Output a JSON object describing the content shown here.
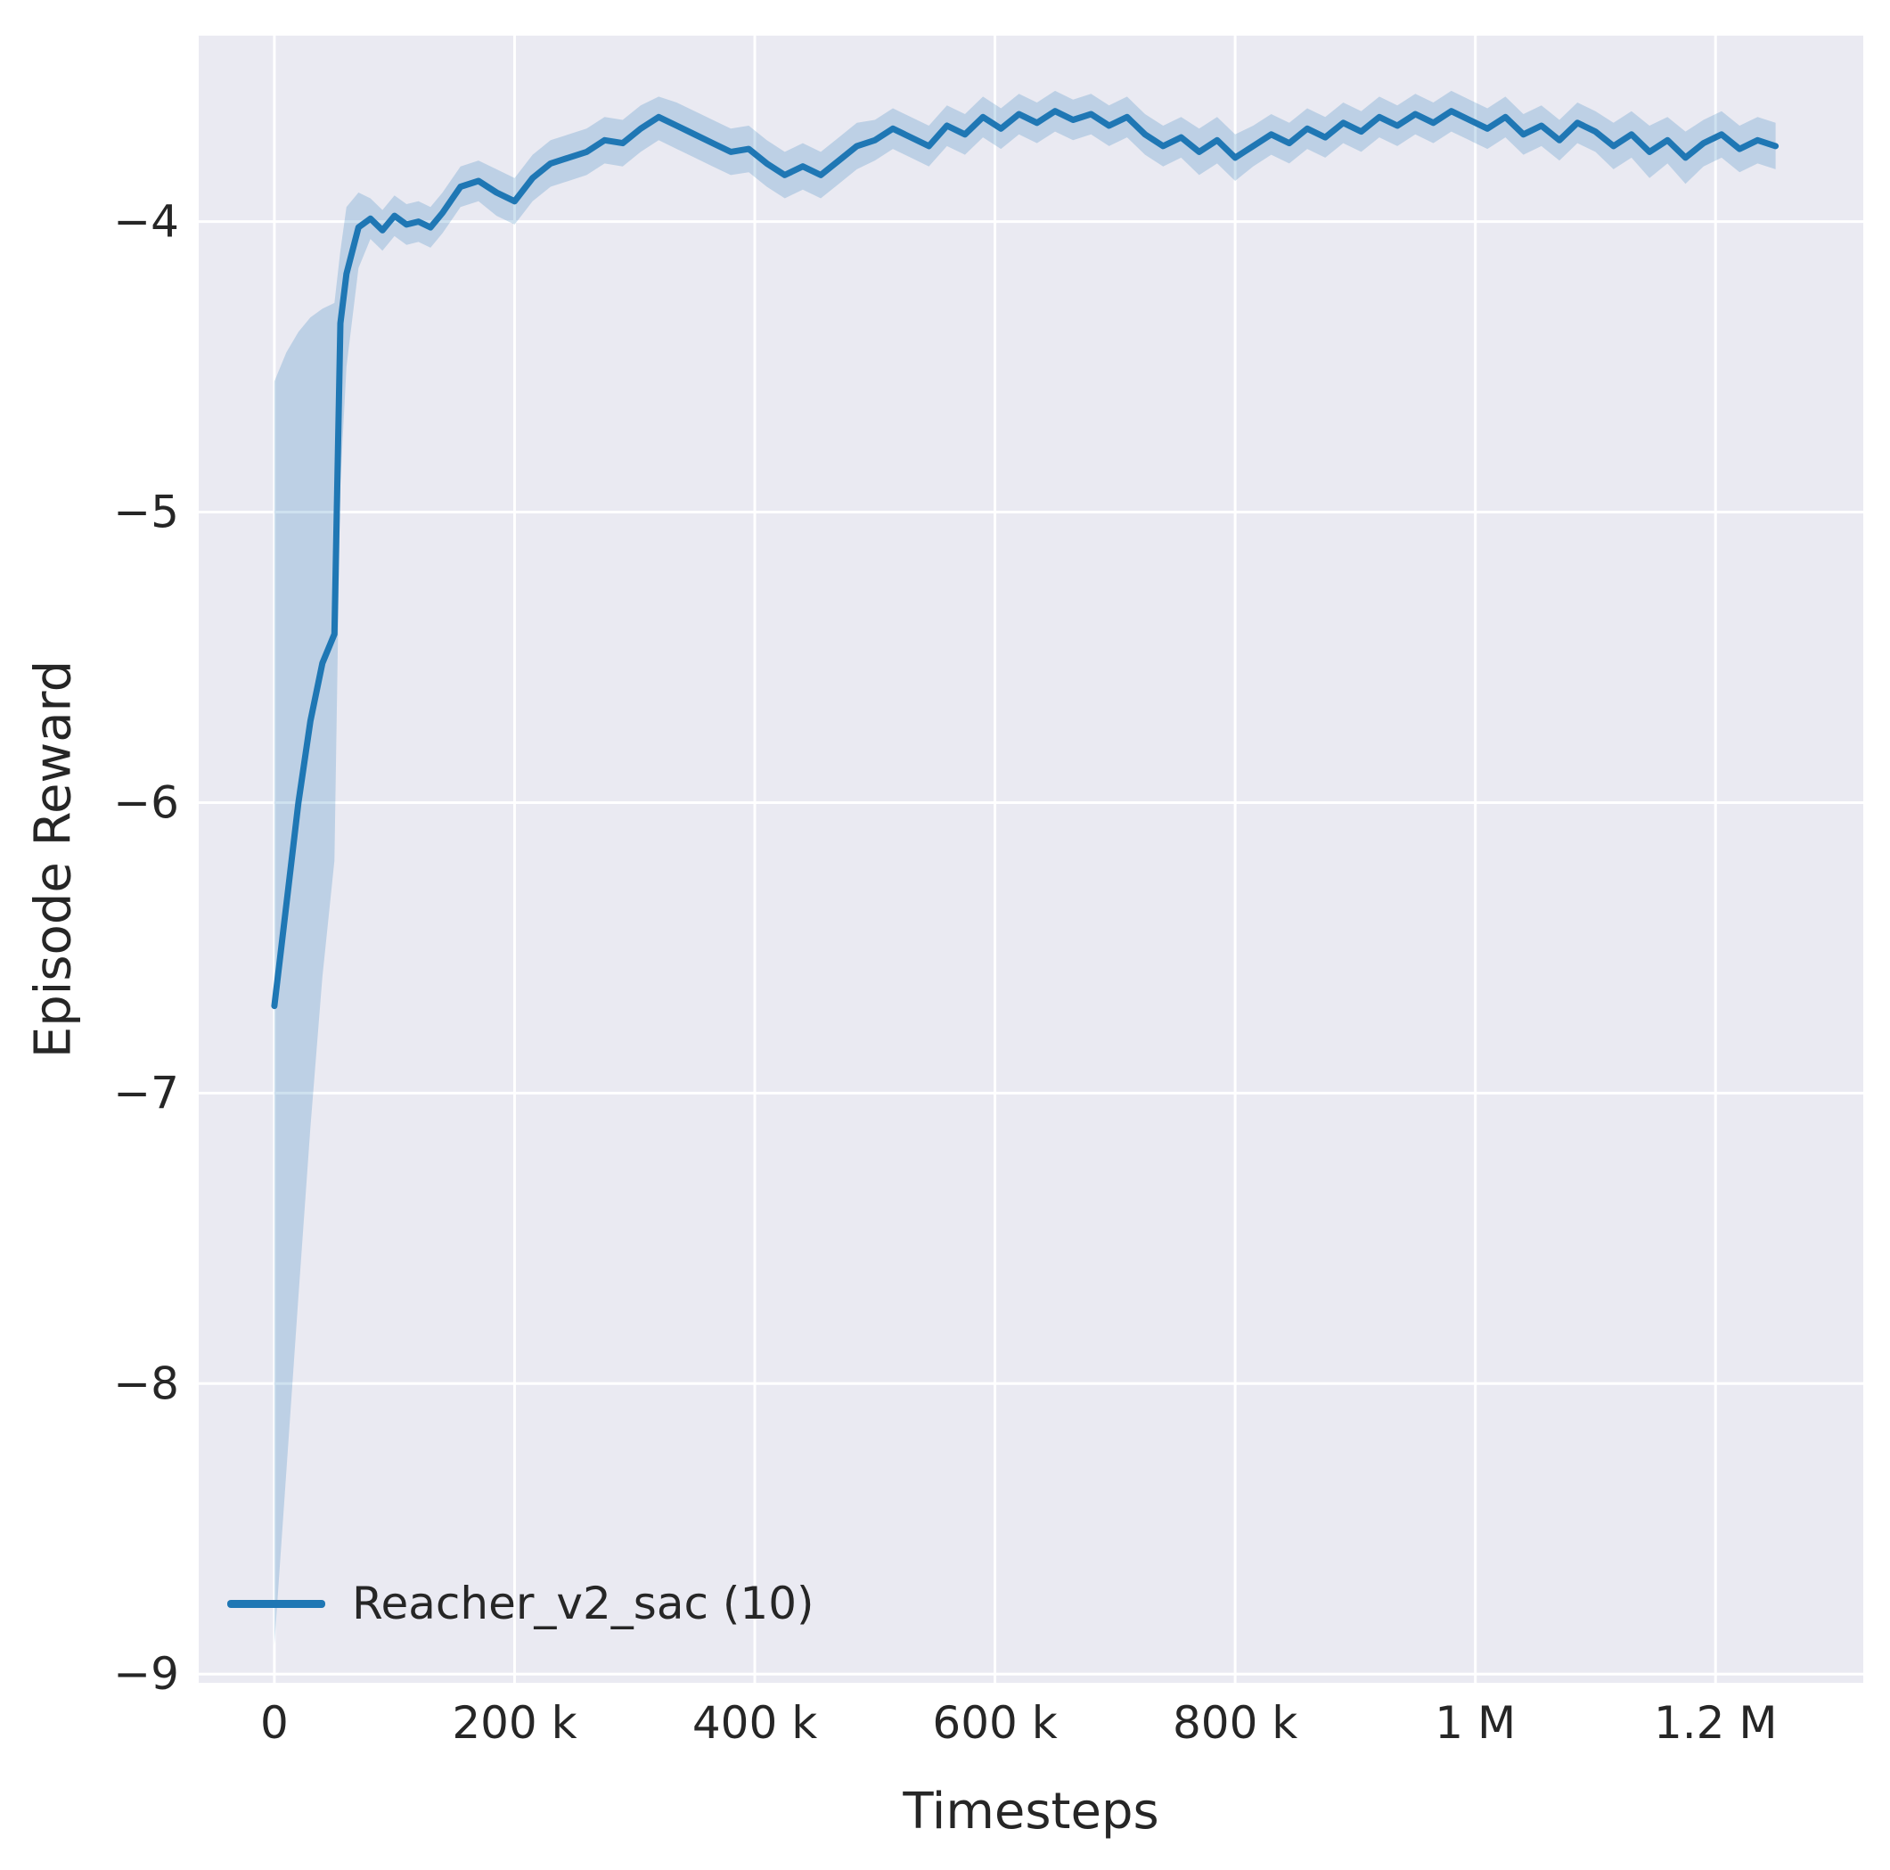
{
  "chart_data": {
    "type": "line",
    "title": "",
    "xlabel": "Timesteps",
    "ylabel": "Episode Reward",
    "plot_bg": "#eaeaf2",
    "grid_color": "#ffffff",
    "grid": true,
    "text_color": "#262626",
    "xlim": [
      -63000,
      1323000
    ],
    "ylim": [
      -9.03,
      -3.36
    ],
    "x_ticks": {
      "values": [
        0,
        200000,
        400000,
        600000,
        800000,
        1000000,
        1200000
      ],
      "labels": [
        "0",
        "200 k",
        "400 k",
        "600 k",
        "800 k",
        "1 M",
        "1.2 M"
      ]
    },
    "y_ticks": {
      "values": [
        -4,
        -5,
        -6,
        -7,
        -8,
        -9
      ],
      "labels": [
        "−4",
        "−5",
        "−6",
        "−7",
        "−8",
        "−9"
      ]
    },
    "legend": {
      "position": "lower-left",
      "entries": [
        {
          "label": "Reacher_v2_sac (10)",
          "color": "#1f77b4"
        }
      ]
    },
    "series": [
      {
        "name": "Reacher_v2_sac (10)",
        "color": "#1f77b4",
        "line_width": 7,
        "band_color": "#1f77b4",
        "band_opacity": 0.22,
        "x": [
          0,
          10000,
          20000,
          30000,
          40000,
          50000,
          55000,
          60000,
          70000,
          80000,
          90000,
          100000,
          110000,
          120000,
          130000,
          140000,
          155000,
          170000,
          185000,
          200000,
          215000,
          230000,
          245000,
          260000,
          275000,
          290000,
          305000,
          320000,
          335000,
          350000,
          365000,
          380000,
          395000,
          410000,
          425000,
          440000,
          455000,
          470000,
          485000,
          500000,
          515000,
          530000,
          545000,
          560000,
          575000,
          590000,
          605000,
          620000,
          635000,
          650000,
          665000,
          680000,
          695000,
          710000,
          725000,
          740000,
          755000,
          770000,
          785000,
          800000,
          815000,
          830000,
          845000,
          860000,
          875000,
          890000,
          905000,
          920000,
          935000,
          950000,
          965000,
          980000,
          995000,
          1010000,
          1025000,
          1040000,
          1055000,
          1070000,
          1085000,
          1100000,
          1115000,
          1130000,
          1145000,
          1160000,
          1175000,
          1190000,
          1205000,
          1220000,
          1235000,
          1250000
        ],
        "mean": [
          -6.7,
          -6.35,
          -6.0,
          -5.72,
          -5.52,
          -5.42,
          -4.35,
          -4.18,
          -4.02,
          -3.99,
          -4.03,
          -3.98,
          -4.01,
          -4.0,
          -4.02,
          -3.97,
          -3.88,
          -3.86,
          -3.9,
          -3.93,
          -3.85,
          -3.8,
          -3.78,
          -3.76,
          -3.72,
          -3.73,
          -3.68,
          -3.64,
          -3.67,
          -3.7,
          -3.73,
          -3.76,
          -3.75,
          -3.8,
          -3.84,
          -3.81,
          -3.84,
          -3.79,
          -3.74,
          -3.72,
          -3.68,
          -3.71,
          -3.74,
          -3.67,
          -3.7,
          -3.64,
          -3.68,
          -3.63,
          -3.66,
          -3.62,
          -3.65,
          -3.63,
          -3.67,
          -3.64,
          -3.7,
          -3.74,
          -3.71,
          -3.76,
          -3.72,
          -3.78,
          -3.74,
          -3.7,
          -3.73,
          -3.68,
          -3.71,
          -3.66,
          -3.69,
          -3.64,
          -3.67,
          -3.63,
          -3.66,
          -3.62,
          -3.65,
          -3.68,
          -3.64,
          -3.7,
          -3.67,
          -3.72,
          -3.66,
          -3.69,
          -3.74,
          -3.7,
          -3.76,
          -3.72,
          -3.78,
          -3.73,
          -3.7,
          -3.75,
          -3.72,
          -3.74
        ],
        "band_lower": [
          -8.9,
          -8.3,
          -7.7,
          -7.12,
          -6.6,
          -6.2,
          -4.9,
          -4.5,
          -4.16,
          -4.06,
          -4.1,
          -4.05,
          -4.08,
          -4.07,
          -4.09,
          -4.04,
          -3.95,
          -3.93,
          -3.98,
          -4.01,
          -3.93,
          -3.88,
          -3.86,
          -3.84,
          -3.8,
          -3.81,
          -3.76,
          -3.72,
          -3.75,
          -3.78,
          -3.81,
          -3.84,
          -3.83,
          -3.88,
          -3.92,
          -3.89,
          -3.92,
          -3.87,
          -3.82,
          -3.79,
          -3.75,
          -3.78,
          -3.81,
          -3.74,
          -3.77,
          -3.71,
          -3.75,
          -3.7,
          -3.73,
          -3.69,
          -3.72,
          -3.7,
          -3.74,
          -3.71,
          -3.77,
          -3.81,
          -3.78,
          -3.84,
          -3.8,
          -3.86,
          -3.81,
          -3.77,
          -3.8,
          -3.75,
          -3.78,
          -3.73,
          -3.76,
          -3.71,
          -3.74,
          -3.7,
          -3.73,
          -3.69,
          -3.72,
          -3.75,
          -3.71,
          -3.77,
          -3.74,
          -3.79,
          -3.73,
          -3.76,
          -3.82,
          -3.78,
          -3.85,
          -3.8,
          -3.87,
          -3.81,
          -3.78,
          -3.83,
          -3.8,
          -3.82
        ],
        "band_upper": [
          -4.55,
          -4.45,
          -4.38,
          -4.33,
          -4.3,
          -4.28,
          -4.1,
          -3.95,
          -3.9,
          -3.92,
          -3.96,
          -3.91,
          -3.94,
          -3.93,
          -3.95,
          -3.9,
          -3.81,
          -3.79,
          -3.82,
          -3.85,
          -3.77,
          -3.72,
          -3.7,
          -3.68,
          -3.64,
          -3.65,
          -3.6,
          -3.57,
          -3.59,
          -3.62,
          -3.65,
          -3.68,
          -3.67,
          -3.72,
          -3.76,
          -3.73,
          -3.76,
          -3.71,
          -3.66,
          -3.65,
          -3.61,
          -3.64,
          -3.67,
          -3.6,
          -3.63,
          -3.57,
          -3.61,
          -3.56,
          -3.59,
          -3.55,
          -3.58,
          -3.56,
          -3.6,
          -3.57,
          -3.63,
          -3.67,
          -3.64,
          -3.68,
          -3.64,
          -3.7,
          -3.67,
          -3.63,
          -3.66,
          -3.61,
          -3.64,
          -3.59,
          -3.62,
          -3.57,
          -3.6,
          -3.56,
          -3.59,
          -3.55,
          -3.58,
          -3.61,
          -3.57,
          -3.63,
          -3.6,
          -3.65,
          -3.59,
          -3.62,
          -3.66,
          -3.62,
          -3.67,
          -3.64,
          -3.69,
          -3.65,
          -3.62,
          -3.67,
          -3.64,
          -3.66
        ]
      }
    ]
  }
}
